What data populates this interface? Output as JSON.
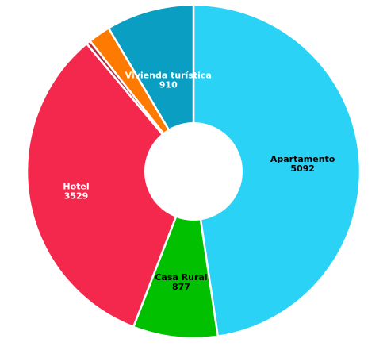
{
  "chart_data": {
    "type": "pie",
    "donut": true,
    "title": "",
    "slices": [
      {
        "label": "Apartamento",
        "value": 5092,
        "color": "#2ad3f5",
        "label_color": "#000000",
        "show_label": true
      },
      {
        "label": "Casa Rural",
        "value": 877,
        "color": "#00c000",
        "label_color": "#000000",
        "show_label": true
      },
      {
        "label": "Hotel",
        "value": 3529,
        "color": "#f4284c",
        "label_color": "#ffffff",
        "show_label": true
      },
      {
        "label": "",
        "value": 45,
        "color": "#b03048",
        "label_color": "#ffffff",
        "show_label": false
      },
      {
        "label": "",
        "value": 230,
        "color": "#ff7a00",
        "label_color": "#ffffff",
        "show_label": false
      },
      {
        "label": "Vivienda turística",
        "value": 910,
        "color": "#0a9fc2",
        "label_color": "#ffffff",
        "show_label": true
      }
    ]
  }
}
